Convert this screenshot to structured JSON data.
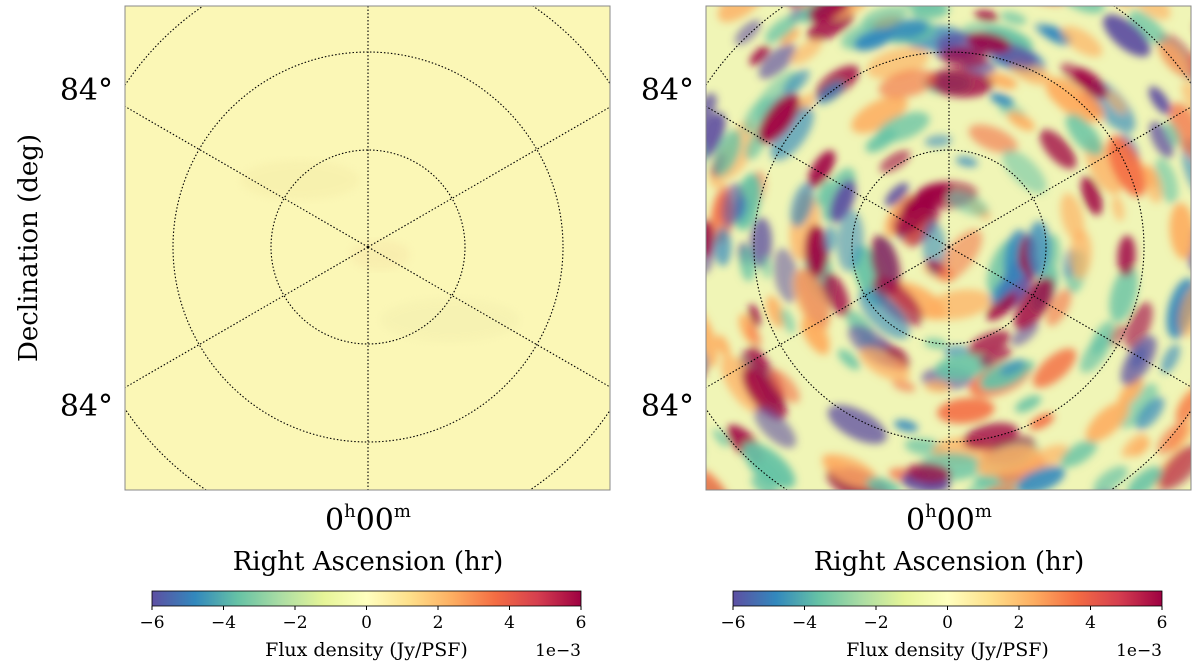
{
  "chart_data": [
    {
      "type": "heatmap",
      "projection": "polar sky map",
      "panel": "left",
      "xlabel": "Right Ascension (hr)",
      "ylabel": "Declination (deg)",
      "ra_tick": {
        "h": "0",
        "m": "00"
      },
      "dec_ticks": [
        "84°",
        "84°"
      ],
      "colorbar": {
        "label": "Flux density (Jy/PSF)",
        "ticks": [
          -6,
          -4,
          -2,
          0,
          2,
          4,
          6
        ],
        "tick_labels": [
          "−6",
          "−4",
          "−2",
          "0",
          "2",
          "4",
          "6"
        ],
        "range": [
          -6,
          6
        ],
        "offset": "1e−3",
        "colormap": "Spectral_r"
      },
      "field_level": "near zero (residual ≈ 0 Jy/PSF)"
    },
    {
      "type": "heatmap",
      "projection": "polar sky map",
      "panel": "right",
      "xlabel": "Right Ascension (hr)",
      "ylabel": "",
      "ra_tick": {
        "h": "0",
        "m": "00"
      },
      "dec_ticks": [
        "84°",
        "84°"
      ],
      "colorbar": {
        "label": "Flux density (Jy/PSF)",
        "ticks": [
          -6,
          -4,
          -2,
          0,
          2,
          4,
          6
        ],
        "tick_labels": [
          "−6",
          "−4",
          "−2",
          "0",
          "2",
          "4",
          "6"
        ],
        "range": [
          -6,
          6
        ],
        "offset": "1e−3",
        "colormap": "Spectral_r"
      },
      "field_level": "noise-like fluctuations up to ±6e−3 Jy/PSF"
    }
  ],
  "colors": {
    "neg_extreme": "#5e4fa2",
    "neg": "#3288bd",
    "neg_mid": "#66c2a5",
    "zero": "#ffffbf",
    "pos_mid": "#fdae61",
    "pos": "#f46d43",
    "pos_extreme": "#9e0142",
    "grid": "#000000"
  }
}
